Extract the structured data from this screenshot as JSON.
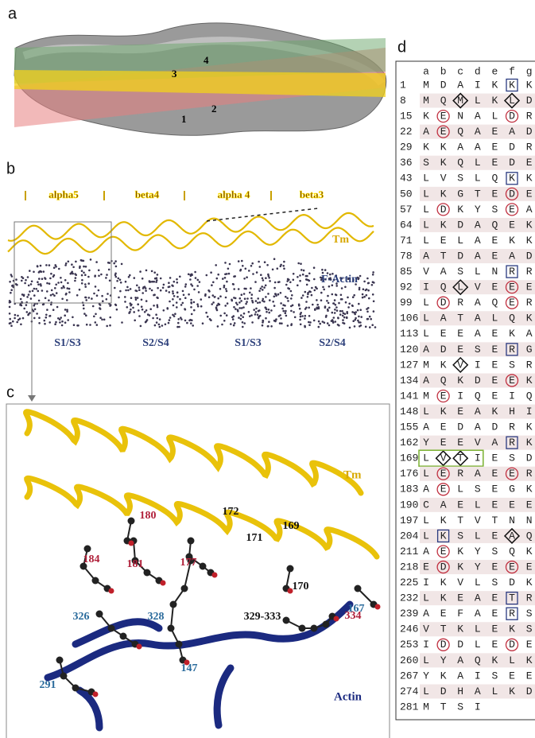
{
  "panel_a": {
    "label": "a",
    "numbers": [
      "1",
      "2",
      "3",
      "4"
    ]
  },
  "panel_b": {
    "label": "b",
    "segments": [
      "alpha5",
      "beta4",
      "alpha 4",
      "beta3"
    ],
    "tm": "Tm",
    "actin": "F-Actin",
    "subdomains": [
      "S1/S3",
      "S2/S4",
      "S1/S3",
      "S2/S4"
    ]
  },
  "panel_c": {
    "label": "c",
    "tm": "Tm",
    "actin": "Actin",
    "residues": [
      {
        "text": "172",
        "color": "#111111"
      },
      {
        "text": "171",
        "color": "#111111"
      },
      {
        "text": "169",
        "color": "#111111"
      },
      {
        "text": "170",
        "color": "#111111"
      },
      {
        "text": "167",
        "color": "#2a6b9c"
      },
      {
        "text": "180",
        "color": "#b0203a"
      },
      {
        "text": "184",
        "color": "#b0203a"
      },
      {
        "text": "181",
        "color": "#b0203a"
      },
      {
        "text": "177",
        "color": "#b0203a"
      },
      {
        "text": "326",
        "color": "#2a6b9c"
      },
      {
        "text": "328",
        "color": "#2a6b9c"
      },
      {
        "text": "329-333",
        "color": "#111111"
      },
      {
        "text": "334",
        "color": "#b0203a"
      },
      {
        "text": "291",
        "color": "#2a6b9c"
      },
      {
        "text": "147",
        "color": "#2a6b9c"
      }
    ]
  },
  "panel_d": {
    "label": "d",
    "columns": [
      "a",
      "b",
      "c",
      "d",
      "e",
      "f",
      "g"
    ],
    "rows": [
      {
        "start": 1,
        "residues": [
          "M",
          "D",
          "A",
          "I",
          "K",
          "K",
          "K"
        ]
      },
      {
        "start": 8,
        "residues": [
          "M",
          "Q",
          "M",
          "L",
          "K",
          "L",
          "D"
        ]
      },
      {
        "start": 15,
        "residues": [
          "K",
          "E",
          "N",
          "A",
          "L",
          "D",
          "R"
        ]
      },
      {
        "start": 22,
        "residues": [
          "A",
          "E",
          "Q",
          "A",
          "E",
          "A",
          "D"
        ]
      },
      {
        "start": 29,
        "residues": [
          "K",
          "K",
          "A",
          "A",
          "E",
          "D",
          "R"
        ]
      },
      {
        "start": 36,
        "residues": [
          "S",
          "K",
          "Q",
          "L",
          "E",
          "D",
          "E"
        ]
      },
      {
        "start": 43,
        "residues": [
          "L",
          "V",
          "S",
          "L",
          "Q",
          "K",
          "K"
        ]
      },
      {
        "start": 50,
        "residues": [
          "L",
          "K",
          "G",
          "T",
          "E",
          "D",
          "E"
        ]
      },
      {
        "start": 57,
        "residues": [
          "L",
          "D",
          "K",
          "Y",
          "S",
          "E",
          "A"
        ]
      },
      {
        "start": 64,
        "residues": [
          "L",
          "K",
          "D",
          "A",
          "Q",
          "E",
          "K"
        ]
      },
      {
        "start": 71,
        "residues": [
          "L",
          "E",
          "L",
          "A",
          "E",
          "K",
          "K"
        ]
      },
      {
        "start": 78,
        "residues": [
          "A",
          "T",
          "D",
          "A",
          "E",
          "A",
          "D"
        ]
      },
      {
        "start": 85,
        "residues": [
          "V",
          "A",
          "S",
          "L",
          "N",
          "R",
          "R"
        ]
      },
      {
        "start": 92,
        "residues": [
          "I",
          "Q",
          "L",
          "V",
          "E",
          "E",
          "E"
        ]
      },
      {
        "start": 99,
        "residues": [
          "L",
          "D",
          "R",
          "A",
          "Q",
          "E",
          "R"
        ]
      },
      {
        "start": 106,
        "residues": [
          "L",
          "A",
          "T",
          "A",
          "L",
          "Q",
          "K"
        ]
      },
      {
        "start": 113,
        "residues": [
          "L",
          "E",
          "E",
          "A",
          "E",
          "K",
          "A"
        ]
      },
      {
        "start": 120,
        "residues": [
          "A",
          "D",
          "E",
          "S",
          "E",
          "R",
          "G"
        ]
      },
      {
        "start": 127,
        "residues": [
          "M",
          "K",
          "V",
          "I",
          "E",
          "S",
          "R"
        ]
      },
      {
        "start": 134,
        "residues": [
          "A",
          "Q",
          "K",
          "D",
          "E",
          "E",
          "K"
        ]
      },
      {
        "start": 141,
        "residues": [
          "M",
          "E",
          "I",
          "Q",
          "E",
          "I",
          "Q"
        ]
      },
      {
        "start": 148,
        "residues": [
          "L",
          "K",
          "E",
          "A",
          "K",
          "H",
          "I"
        ]
      },
      {
        "start": 155,
        "residues": [
          "A",
          "E",
          "D",
          "A",
          "D",
          "R",
          "K"
        ]
      },
      {
        "start": 162,
        "residues": [
          "Y",
          "E",
          "E",
          "V",
          "A",
          "R",
          "K"
        ]
      },
      {
        "start": 169,
        "residues": [
          "L",
          "V",
          "T",
          "I",
          "E",
          "S",
          "D"
        ]
      },
      {
        "start": 176,
        "residues": [
          "L",
          "E",
          "R",
          "A",
          "E",
          "E",
          "R"
        ]
      },
      {
        "start": 183,
        "residues": [
          "A",
          "E",
          "L",
          "S",
          "E",
          "G",
          "K"
        ]
      },
      {
        "start": 190,
        "residues": [
          "C",
          "A",
          "E",
          "L",
          "E",
          "E",
          "E"
        ]
      },
      {
        "start": 197,
        "residues": [
          "L",
          "K",
          "T",
          "V",
          "T",
          "N",
          "N"
        ]
      },
      {
        "start": 204,
        "residues": [
          "L",
          "K",
          "S",
          "L",
          "E",
          "A",
          "Q"
        ]
      },
      {
        "start": 211,
        "residues": [
          "A",
          "E",
          "K",
          "Y",
          "S",
          "Q",
          "K"
        ]
      },
      {
        "start": 218,
        "residues": [
          "E",
          "D",
          "K",
          "Y",
          "E",
          "E",
          "E"
        ]
      },
      {
        "start": 225,
        "residues": [
          "I",
          "K",
          "V",
          "L",
          "S",
          "D",
          "K"
        ]
      },
      {
        "start": 232,
        "residues": [
          "L",
          "K",
          "E",
          "A",
          "E",
          "T",
          "R"
        ]
      },
      {
        "start": 239,
        "residues": [
          "A",
          "E",
          "F",
          "A",
          "E",
          "R",
          "S"
        ]
      },
      {
        "start": 246,
        "residues": [
          "V",
          "T",
          "K",
          "L",
          "E",
          "K",
          "S"
        ]
      },
      {
        "start": 253,
        "residues": [
          "I",
          "D",
          "D",
          "L",
          "E",
          "D",
          "E"
        ]
      },
      {
        "start": 260,
        "residues": [
          "L",
          "Y",
          "A",
          "Q",
          "K",
          "L",
          "K"
        ]
      },
      {
        "start": 267,
        "residues": [
          "Y",
          "K",
          "A",
          "I",
          "S",
          "E",
          "E"
        ]
      },
      {
        "start": 274,
        "residues": [
          "L",
          "D",
          "H",
          "A",
          "L",
          "K",
          "D"
        ]
      },
      {
        "start": 281,
        "residues": [
          "M",
          "T",
          "S",
          "I"
        ]
      }
    ]
  }
}
